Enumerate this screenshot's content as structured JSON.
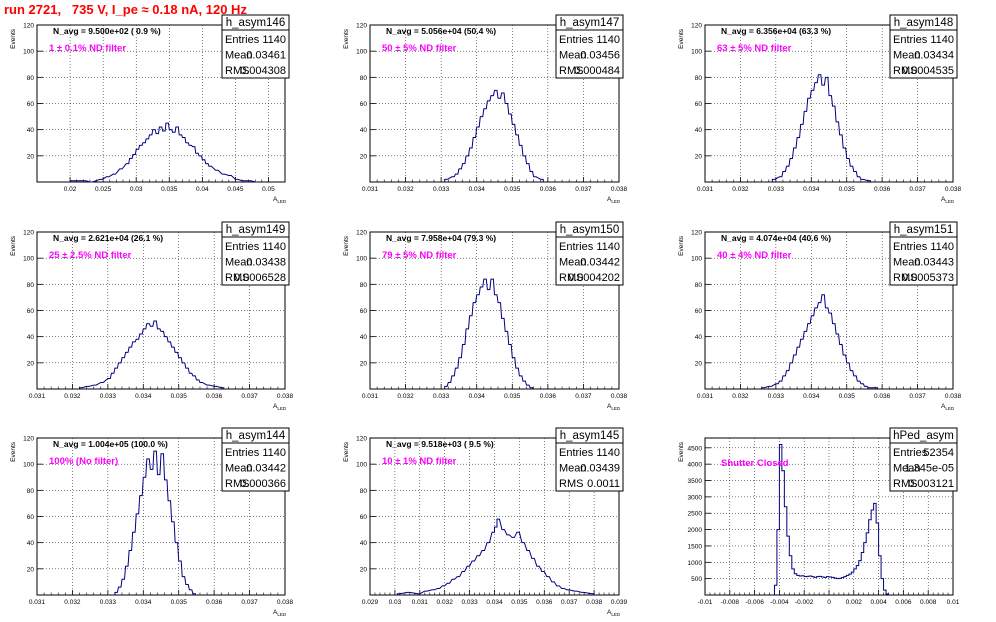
{
  "run_title": "run 2721,   735 V, I_pe ≈ 0.18 nA, 120 Hz",
  "stat_labels": {
    "entries": "Entries",
    "mean": "Mean",
    "rms": "RMS"
  },
  "chart_data": [
    {
      "type": "histogram",
      "name": "h_asym146",
      "navg": "N_avg = 9.500e+02 ( 0.9 %)",
      "filter_label": "1 ± 0.1% ND filter",
      "entries": "1140",
      "mean": "0.03461",
      "rms": "0.004308",
      "ylabel": "Events",
      "xlabel": "A",
      "xlabel_sub": "LED",
      "xlim": [
        0.015,
        0.0525
      ],
      "ylim": [
        0,
        120
      ],
      "xticks": [
        0.02,
        0.025,
        0.03,
        0.035,
        0.04,
        0.045,
        0.05
      ],
      "xtick_labels": [
        "0.02",
        "0.025",
        "0.03",
        "0.035",
        "0.04",
        "0.045",
        "0.05"
      ],
      "yticks": [
        20,
        40,
        60,
        80,
        100,
        120
      ],
      "nbins": 100,
      "bins": [
        0.0201,
        0.022,
        0.023,
        0.0245,
        0.0255,
        0.0265,
        0.0275,
        0.0285,
        0.029,
        0.0295,
        0.03,
        0.0305,
        0.031,
        0.0315,
        0.032,
        0.0325,
        0.033,
        0.0335,
        0.034,
        0.0345,
        0.035,
        0.0355,
        0.036,
        0.0365,
        0.037,
        0.0375,
        0.038,
        0.0385,
        0.039,
        0.0395,
        0.04,
        0.0405,
        0.041,
        0.042,
        0.043,
        0.044,
        0.045,
        0.046,
        0.047,
        0.048
      ],
      "counts": [
        1,
        1,
        0,
        2,
        4,
        6,
        10,
        14,
        18,
        21,
        25,
        28,
        30,
        33,
        36,
        40,
        37,
        42,
        39,
        45,
        40,
        38,
        42,
        36,
        34,
        30,
        28,
        27,
        22,
        20,
        17,
        14,
        12,
        9,
        6,
        5,
        2,
        1,
        1,
        0
      ]
    },
    {
      "type": "histogram",
      "name": "h_asym147",
      "navg": "N_avg = 5.056e+04 (50.4 %)",
      "filter_label": "50 ± 5% ND filter",
      "entries": "1140",
      "mean": "0.03456",
      "rms": "0.000484",
      "ylabel": "Events",
      "xlabel": "A",
      "xlabel_sub": "LED",
      "xlim": [
        0.031,
        0.038
      ],
      "ylim": [
        0,
        120
      ],
      "xticks": [
        0.031,
        0.032,
        0.033,
        0.034,
        0.035,
        0.036,
        0.037,
        0.038
      ],
      "xtick_labels": [
        "0.031",
        "0.032",
        "0.033",
        "0.034",
        "0.035",
        "0.036",
        "0.037",
        "0.038"
      ],
      "yticks": [
        20,
        40,
        60,
        80,
        100,
        120
      ],
      "nbins": 100,
      "bins": [
        0.0331,
        0.0333,
        0.0334,
        0.0335,
        0.0336,
        0.0337,
        0.0338,
        0.0339,
        0.034,
        0.0341,
        0.0342,
        0.0343,
        0.0344,
        0.0345,
        0.0346,
        0.0347,
        0.0348,
        0.0349,
        0.035,
        0.0351,
        0.0352,
        0.0353,
        0.0354,
        0.0355,
        0.0356,
        0.0358
      ],
      "counts": [
        2,
        4,
        6,
        10,
        14,
        20,
        26,
        34,
        42,
        50,
        56,
        62,
        66,
        70,
        64,
        68,
        60,
        52,
        44,
        36,
        28,
        20,
        14,
        8,
        4,
        2
      ]
    },
    {
      "type": "histogram",
      "name": "h_asym148",
      "navg": "N_avg = 6.356e+04 (63.3 %)",
      "filter_label": "63 ± 5% ND filter",
      "entries": "1140",
      "mean": "0.03434",
      "rms": "0.0004535",
      "ylabel": "Events",
      "xlabel": "A",
      "xlabel_sub": "LED",
      "xlim": [
        0.031,
        0.038
      ],
      "ylim": [
        0,
        120
      ],
      "xticks": [
        0.031,
        0.032,
        0.033,
        0.034,
        0.035,
        0.036,
        0.037,
        0.038
      ],
      "xtick_labels": [
        "0.031",
        "0.032",
        "0.033",
        "0.034",
        "0.035",
        "0.036",
        "0.037",
        "0.038"
      ],
      "yticks": [
        20,
        40,
        60,
        80,
        100,
        120
      ],
      "nbins": 100,
      "bins": [
        0.0329,
        0.0331,
        0.0332,
        0.0333,
        0.0334,
        0.0335,
        0.0336,
        0.0337,
        0.0338,
        0.0339,
        0.034,
        0.0341,
        0.0342,
        0.0343,
        0.0344,
        0.0345,
        0.0346,
        0.0347,
        0.0348,
        0.0349,
        0.035,
        0.0351,
        0.0352,
        0.0353,
        0.0354,
        0.0356
      ],
      "counts": [
        2,
        4,
        8,
        12,
        18,
        26,
        34,
        44,
        54,
        64,
        70,
        76,
        82,
        74,
        80,
        66,
        58,
        46,
        36,
        26,
        18,
        12,
        8,
        4,
        2,
        1
      ]
    },
    {
      "type": "histogram",
      "name": "h_asym149",
      "navg": "N_avg = 2.621e+04 (26.1 %)",
      "filter_label": "25 ± 2.5% ND filter",
      "entries": "1140",
      "mean": "0.03438",
      "rms": "0.0006528",
      "ylabel": "Events",
      "xlabel": "A",
      "xlabel_sub": "LED",
      "xlim": [
        0.031,
        0.038
      ],
      "ylim": [
        0,
        120
      ],
      "xticks": [
        0.031,
        0.032,
        0.033,
        0.034,
        0.035,
        0.036,
        0.037,
        0.038
      ],
      "xtick_labels": [
        "0.031",
        "0.032",
        "0.033",
        "0.034",
        "0.035",
        "0.036",
        "0.037",
        "0.038"
      ],
      "yticks": [
        20,
        40,
        60,
        80,
        100,
        120
      ],
      "nbins": 100,
      "bins": [
        0.0322,
        0.0324,
        0.0326,
        0.0328,
        0.033,
        0.0331,
        0.0332,
        0.0333,
        0.0334,
        0.0335,
        0.0336,
        0.0337,
        0.0338,
        0.0339,
        0.034,
        0.0341,
        0.0342,
        0.0343,
        0.0344,
        0.0345,
        0.0346,
        0.0347,
        0.0348,
        0.0349,
        0.035,
        0.0351,
        0.0352,
        0.0353,
        0.0354,
        0.0355,
        0.0356,
        0.0358,
        0.036,
        0.0362
      ],
      "counts": [
        1,
        2,
        3,
        5,
        8,
        12,
        16,
        20,
        24,
        28,
        32,
        36,
        38,
        42,
        46,
        50,
        48,
        52,
        46,
        44,
        40,
        36,
        32,
        28,
        24,
        20,
        16,
        12,
        10,
        7,
        5,
        3,
        2,
        1
      ]
    },
    {
      "type": "histogram",
      "name": "h_asym150",
      "navg": "N_avg = 7.958e+04 (79.3 %)",
      "filter_label": "79 ± 5% ND filter",
      "entries": "1140",
      "mean": "0.03442",
      "rms": "0.0004202",
      "ylabel": "Events",
      "xlabel": "A",
      "xlabel_sub": "LED",
      "xlim": [
        0.031,
        0.038
      ],
      "ylim": [
        0,
        120
      ],
      "xticks": [
        0.031,
        0.032,
        0.033,
        0.034,
        0.035,
        0.036,
        0.037,
        0.038
      ],
      "xtick_labels": [
        "0.031",
        "0.032",
        "0.033",
        "0.034",
        "0.035",
        "0.036",
        "0.037",
        "0.038"
      ],
      "yticks": [
        20,
        40,
        60,
        80,
        100,
        120
      ],
      "nbins": 100,
      "bins": [
        0.0331,
        0.0332,
        0.0333,
        0.0334,
        0.0335,
        0.0336,
        0.0337,
        0.0338,
        0.0339,
        0.034,
        0.0341,
        0.0342,
        0.0343,
        0.0344,
        0.0345,
        0.0346,
        0.0347,
        0.0348,
        0.0349,
        0.035,
        0.0351,
        0.0352,
        0.0353,
        0.0354,
        0.0355
      ],
      "counts": [
        2,
        5,
        10,
        16,
        24,
        34,
        46,
        56,
        66,
        72,
        78,
        84,
        76,
        84,
        72,
        66,
        54,
        44,
        34,
        24,
        16,
        10,
        6,
        3,
        1
      ]
    },
    {
      "type": "histogram",
      "name": "h_asym151",
      "navg": "N_avg = 4.074e+04 (40.6 %)",
      "filter_label": "40 ± 4% ND filter",
      "entries": "1140",
      "mean": "0.03443",
      "rms": "0.0005373",
      "ylabel": "Events",
      "xlabel": "A",
      "xlabel_sub": "LED",
      "xlim": [
        0.031,
        0.038
      ],
      "ylim": [
        0,
        120
      ],
      "xticks": [
        0.031,
        0.032,
        0.033,
        0.034,
        0.035,
        0.036,
        0.037,
        0.038
      ],
      "xtick_labels": [
        "0.031",
        "0.032",
        "0.033",
        "0.034",
        "0.035",
        "0.036",
        "0.037",
        "0.038"
      ],
      "yticks": [
        20,
        40,
        60,
        80,
        100,
        120
      ],
      "nbins": 100,
      "bins": [
        0.0326,
        0.0328,
        0.033,
        0.0331,
        0.0332,
        0.0333,
        0.0334,
        0.0335,
        0.0336,
        0.0337,
        0.0338,
        0.0339,
        0.034,
        0.0341,
        0.0342,
        0.0343,
        0.0344,
        0.0345,
        0.0346,
        0.0347,
        0.0348,
        0.0349,
        0.035,
        0.0351,
        0.0352,
        0.0353,
        0.0354,
        0.0355,
        0.0356,
        0.0358
      ],
      "counts": [
        1,
        2,
        4,
        6,
        10,
        14,
        20,
        26,
        32,
        38,
        44,
        50,
        56,
        62,
        66,
        72,
        62,
        58,
        50,
        42,
        34,
        26,
        20,
        14,
        10,
        6,
        4,
        2,
        1,
        1
      ]
    },
    {
      "type": "histogram",
      "name": "h_asym144",
      "navg": "N_avg = 1.004e+05 (100.0 %)",
      "filter_label": "100% (No filter)",
      "entries": "1140",
      "mean": "0.03442",
      "rms": "0.000366",
      "ylabel": "Events",
      "xlabel": "A",
      "xlabel_sub": "LED",
      "xlim": [
        0.031,
        0.038
      ],
      "ylim": [
        0,
        120
      ],
      "xticks": [
        0.031,
        0.032,
        0.033,
        0.034,
        0.035,
        0.036,
        0.037,
        0.038
      ],
      "xtick_labels": [
        "0.031",
        "0.032",
        "0.033",
        "0.034",
        "0.035",
        "0.036",
        "0.037",
        "0.038"
      ],
      "yticks": [
        20,
        40,
        60,
        80,
        100,
        120
      ],
      "nbins": 100,
      "bins": [
        0.0332,
        0.0333,
        0.0334,
        0.0335,
        0.0336,
        0.0337,
        0.0338,
        0.0339,
        0.034,
        0.0341,
        0.0342,
        0.0343,
        0.0344,
        0.0345,
        0.0346,
        0.0347,
        0.0348,
        0.0349,
        0.035,
        0.0351,
        0.0352,
        0.0353,
        0.0354
      ],
      "counts": [
        2,
        6,
        12,
        22,
        34,
        48,
        62,
        76,
        90,
        104,
        96,
        110,
        92,
        108,
        88,
        72,
        56,
        40,
        26,
        14,
        8,
        4,
        1
      ]
    },
    {
      "type": "histogram",
      "name": "h_asym145",
      "navg": "N_avg = 9.518e+03 ( 9.5 %)",
      "filter_label": "10 ± 1% ND filter",
      "entries": "1140",
      "mean": "0.03439",
      "rms": "0.0011",
      "ylabel": "Events",
      "xlabel": "A",
      "xlabel_sub": "LED",
      "xlim": [
        0.029,
        0.039
      ],
      "ylim": [
        0,
        120
      ],
      "xticks": [
        0.029,
        0.03,
        0.031,
        0.032,
        0.033,
        0.034,
        0.035,
        0.036,
        0.037,
        0.038,
        0.039
      ],
      "xtick_labels": [
        "0.029",
        "0.03",
        "0.031",
        "0.032",
        "0.033",
        "0.034",
        "0.035",
        "0.036",
        "0.037",
        "0.038",
        "0.039"
      ],
      "yticks": [
        20,
        40,
        60,
        80,
        100,
        120
      ],
      "nbins": 100,
      "bins": [
        0.0301,
        0.0305,
        0.0309,
        0.0312,
        0.0315,
        0.0317,
        0.0319,
        0.0321,
        0.0323,
        0.0325,
        0.0327,
        0.0329,
        0.0331,
        0.0333,
        0.0335,
        0.0337,
        0.0339,
        0.034,
        0.0341,
        0.0343,
        0.0345,
        0.0347,
        0.0349,
        0.0351,
        0.0353,
        0.0355,
        0.0357,
        0.0359,
        0.0361,
        0.0363,
        0.0365,
        0.0367,
        0.0369,
        0.0372,
        0.0375,
        0.0379
      ],
      "counts": [
        1,
        2,
        1,
        3,
        4,
        5,
        7,
        9,
        12,
        14,
        18,
        22,
        26,
        30,
        34,
        40,
        48,
        52,
        58,
        50,
        46,
        44,
        48,
        40,
        34,
        28,
        22,
        18,
        14,
        10,
        7,
        5,
        4,
        3,
        2,
        1
      ]
    },
    {
      "type": "histogram",
      "name": "hPed_asym",
      "navg": "",
      "filter_label": "Shutter Closed",
      "entries": "52354",
      "mean": "1.345e-05",
      "rms": "0.003121",
      "ylabel": "Events",
      "xlabel": "",
      "xlabel_sub": "",
      "xlim": [
        -0.01,
        0.01
      ],
      "ylim": [
        0,
        4800
      ],
      "xticks": [
        -0.01,
        -0.008,
        -0.006,
        -0.004,
        -0.002,
        0,
        0.002,
        0.004,
        0.006,
        0.008,
        0.01
      ],
      "xtick_labels": [
        "-0.01",
        "-0.008",
        "-0.006",
        "-0.004",
        "-0.002",
        "0",
        "0.002",
        "0.004",
        "0.006",
        "0.008",
        "0.01"
      ],
      "yticks": [
        500,
        1000,
        1500,
        2000,
        2500,
        3000,
        3500,
        4000,
        4500
      ],
      "nbins": 100,
      "bins": [
        -0.0044,
        -0.0042,
        -0.004,
        -0.0038,
        -0.0036,
        -0.0034,
        -0.0032,
        -0.003,
        -0.0028,
        -0.0026,
        -0.0024,
        -0.0022,
        -0.002,
        -0.0018,
        -0.0016,
        -0.0014,
        -0.0012,
        -0.001,
        -0.0008,
        -0.0006,
        -0.0004,
        -0.0002,
        0.0,
        0.0002,
        0.0004,
        0.0006,
        0.0008,
        0.001,
        0.0012,
        0.0014,
        0.0016,
        0.0018,
        0.002,
        0.0022,
        0.0024,
        0.0026,
        0.0028,
        0.003,
        0.0032,
        0.0034,
        0.0036,
        0.0038,
        0.004,
        0.0042,
        0.0044,
        0.0046
      ],
      "counts": [
        300,
        2000,
        4600,
        3800,
        2700,
        1800,
        1200,
        800,
        650,
        600,
        580,
        590,
        560,
        570,
        580,
        560,
        540,
        560,
        570,
        550,
        540,
        560,
        550,
        540,
        520,
        500,
        510,
        530,
        560,
        600,
        640,
        700,
        800,
        900,
        1050,
        1300,
        1600,
        1900,
        2300,
        2600,
        2800,
        2200,
        1200,
        500,
        150,
        30
      ]
    }
  ]
}
